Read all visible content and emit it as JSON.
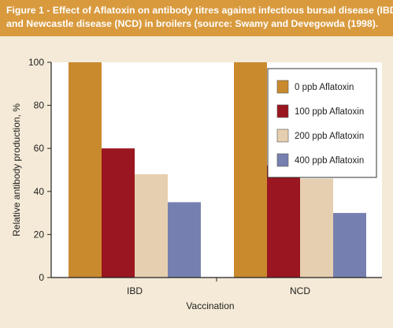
{
  "figure": {
    "caption_line1": "Figure 1 - Effect of Aflatoxin on antibody titres against infectious bursal disease (IBD)",
    "caption_line2": "and Newcastle disease (NCD) in broilers (source: Swamy and Devegowda (1998)."
  },
  "colors": {
    "header": "#d99a3e",
    "background": "#f4ead7",
    "plot_background": "#ffffff"
  },
  "chart_data": {
    "type": "bar",
    "categories": [
      "IBD",
      "NCD"
    ],
    "series": [
      {
        "name": "0 ppb Aflatoxin",
        "color": "#c98a2e",
        "values": [
          100,
          100
        ]
      },
      {
        "name": "100 ppb Aflatoxin",
        "color": "#9a1620",
        "values": [
          60,
          52
        ]
      },
      {
        "name": "200 ppb Aflatoxin",
        "color": "#e6cfb0",
        "values": [
          48,
          46
        ]
      },
      {
        "name": "400 ppb Aflatoxin",
        "color": "#7680b0",
        "values": [
          35,
          30
        ]
      }
    ],
    "xlabel": "Vaccination",
    "ylabel": "Relative antibody production, %",
    "ylim": [
      0,
      100
    ],
    "yticks": [
      0,
      20,
      40,
      60,
      80,
      100
    ],
    "grid": false,
    "legend_position": "top-right"
  }
}
